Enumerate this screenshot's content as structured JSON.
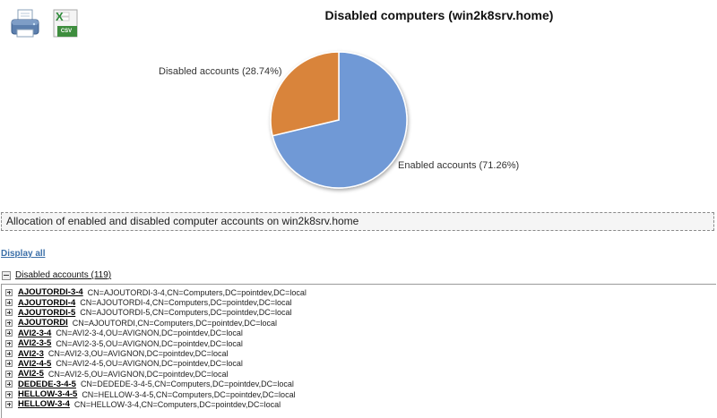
{
  "toolbar": {
    "print_icon": "printer-icon",
    "csv_icon": "csv-export-icon",
    "csv_text": "CSV"
  },
  "title": "Disabled computers (win2k8srv.home)",
  "chart_data": {
    "type": "pie",
    "slices": [
      {
        "label": "Enabled accounts (71.26%)",
        "value": 71.26,
        "color": "#7099d6"
      },
      {
        "label": "Disabled accounts (28.74%)",
        "value": 28.74,
        "color": "#d9843a"
      }
    ]
  },
  "caption": "Allocation of enabled and disabled computer accounts on win2k8srv.home",
  "display_all": "Display all",
  "group": {
    "label": "Disabled accounts (119)",
    "items": [
      {
        "name": "AJOUTORDI-3-4",
        "dn": "CN=AJOUTORDI-3-4,CN=Computers,DC=pointdev,DC=local"
      },
      {
        "name": "AJOUTORDI-4",
        "dn": "CN=AJOUTORDI-4,CN=Computers,DC=pointdev,DC=local"
      },
      {
        "name": "AJOUTORDI-5",
        "dn": "CN=AJOUTORDI-5,CN=Computers,DC=pointdev,DC=local"
      },
      {
        "name": "AJOUTORDI",
        "dn": "CN=AJOUTORDI,CN=Computers,DC=pointdev,DC=local"
      },
      {
        "name": "AVI2-3-4",
        "dn": "CN=AVI2-3-4,OU=AVIGNON,DC=pointdev,DC=local"
      },
      {
        "name": "AVI2-3-5",
        "dn": "CN=AVI2-3-5,OU=AVIGNON,DC=pointdev,DC=local"
      },
      {
        "name": "AVI2-3",
        "dn": "CN=AVI2-3,OU=AVIGNON,DC=pointdev,DC=local"
      },
      {
        "name": "AVI2-4-5",
        "dn": "CN=AVI2-4-5,OU=AVIGNON,DC=pointdev,DC=local"
      },
      {
        "name": "AVI2-5",
        "dn": "CN=AVI2-5,OU=AVIGNON,DC=pointdev,DC=local"
      },
      {
        "name": "DEDEDE-3-4-5",
        "dn": "CN=DEDEDE-3-4-5,CN=Computers,DC=pointdev,DC=local"
      },
      {
        "name": "HELLOW-3-4-5",
        "dn": "CN=HELLOW-3-4-5,CN=Computers,DC=pointdev,DC=local"
      },
      {
        "name": "HELLOW-3-4",
        "dn": "CN=HELLOW-3-4,CN=Computers,DC=pointdev,DC=local"
      }
    ]
  }
}
